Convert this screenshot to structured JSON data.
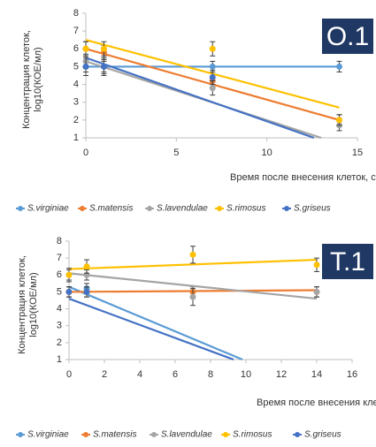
{
  "chart_data": [
    {
      "type": "scatter",
      "label": "O.1",
      "xlabel": "Время после внесения клеток, сутки",
      "ylabel": [
        "Концентрация клеток,",
        "log10(КОЕ/мл)"
      ],
      "xlim": [
        0,
        15
      ],
      "xticks": [
        0,
        5,
        10,
        15
      ],
      "ylim": [
        1,
        8
      ],
      "yticks": [
        1,
        2,
        3,
        4,
        5,
        6,
        7,
        8
      ],
      "series": [
        {
          "name": "S.virginiae",
          "color": "#5b9bd5",
          "x": [
            0,
            1,
            7,
            14
          ],
          "values": [
            5,
            5,
            5,
            5
          ],
          "errors": [
            0.3,
            0.3,
            0.3,
            0.3
          ],
          "trend": {
            "x": [
              0,
              14
            ],
            "values": [
              5,
              5
            ]
          }
        },
        {
          "name": "S.matensis",
          "color": "#ed7d31",
          "x": [
            0,
            1,
            7,
            14
          ],
          "values": [
            6,
            5.8,
            4.2,
            2
          ],
          "errors": [
            0.4,
            0.4,
            0.4,
            0.3
          ],
          "trend": {
            "x": [
              0,
              14
            ],
            "values": [
              6,
              2
            ]
          }
        },
        {
          "name": "S.lavendulae",
          "color": "#a5a5a5",
          "x": [
            0,
            1,
            7,
            14
          ],
          "values": [
            5.3,
            5,
            3.8,
            1.7
          ],
          "errors": [
            0.4,
            0.4,
            0.4,
            0.3
          ],
          "trend": {
            "x": [
              0,
              13
            ],
            "values": [
              5.3,
              1
            ]
          }
        },
        {
          "name": "S.rimosus",
          "color": "#ffc000",
          "x": [
            0,
            1,
            7,
            14
          ],
          "values": [
            6,
            6,
            6,
            2
          ],
          "errors": [
            0.4,
            0.4,
            0.4,
            0.3
          ],
          "trend": {
            "x": [
              0,
              14
            ],
            "values": [
              6.5,
              2.7
            ]
          }
        },
        {
          "name": "S.griseus",
          "color": "#4472c4",
          "x": [
            0,
            1,
            7
          ],
          "values": [
            5,
            5,
            4.4
          ],
          "errors": [
            0.5,
            0.5,
            0.4
          ],
          "trend": {
            "x": [
              0,
              12.6
            ],
            "values": [
              5.5,
              1
            ]
          }
        }
      ]
    },
    {
      "type": "scatter",
      "label": "T.1",
      "xlabel": "Время после внесения клеток, сутки",
      "ylabel": [
        "Концентрация клеток,",
        "log10(КОЕ/мл)"
      ],
      "xlim": [
        0,
        16
      ],
      "xticks": [
        0,
        2,
        4,
        6,
        8,
        10,
        12,
        14,
        16
      ],
      "ylim": [
        1,
        8
      ],
      "yticks": [
        1,
        2,
        3,
        4,
        5,
        6,
        7,
        8
      ],
      "series": [
        {
          "name": "S.virginiae",
          "color": "#5b9bd5",
          "x": [
            0,
            1
          ],
          "values": [
            5,
            5.2
          ],
          "errors": [
            0.3,
            0.3
          ],
          "trend": {
            "x": [
              0,
              9.8
            ],
            "values": [
              5.3,
              1
            ]
          }
        },
        {
          "name": "S.matensis",
          "color": "#ed7d31",
          "x": [
            0,
            1,
            7,
            14
          ],
          "values": [
            5,
            5,
            5,
            5
          ],
          "errors": [
            0.3,
            0.3,
            0.3,
            0.3
          ],
          "trend": {
            "x": [
              0,
              14
            ],
            "values": [
              5,
              5.1
            ]
          }
        },
        {
          "name": "S.lavendulae",
          "color": "#a5a5a5",
          "x": [
            0,
            1,
            7,
            14
          ],
          "values": [
            6,
            6,
            4.7,
            5
          ],
          "errors": [
            0.3,
            0.3,
            0.5,
            0.3
          ],
          "trend": {
            "x": [
              0,
              14
            ],
            "values": [
              6.1,
              4.6
            ]
          }
        },
        {
          "name": "S.rimosus",
          "color": "#ffc000",
          "x": [
            0,
            1,
            7,
            14
          ],
          "values": [
            6,
            6.5,
            7.2,
            6.6
          ],
          "errors": [
            0.4,
            0.4,
            0.5,
            0.4
          ],
          "trend": {
            "x": [
              0,
              14
            ],
            "values": [
              6.35,
              6.9
            ]
          }
        },
        {
          "name": "S.griseus",
          "color": "#4472c4",
          "x": [
            0,
            1
          ],
          "values": [
            5,
            5
          ],
          "errors": [
            0.3,
            0.3
          ],
          "trend": {
            "x": [
              0,
              9.3
            ],
            "values": [
              4.6,
              1
            ]
          }
        }
      ]
    }
  ]
}
